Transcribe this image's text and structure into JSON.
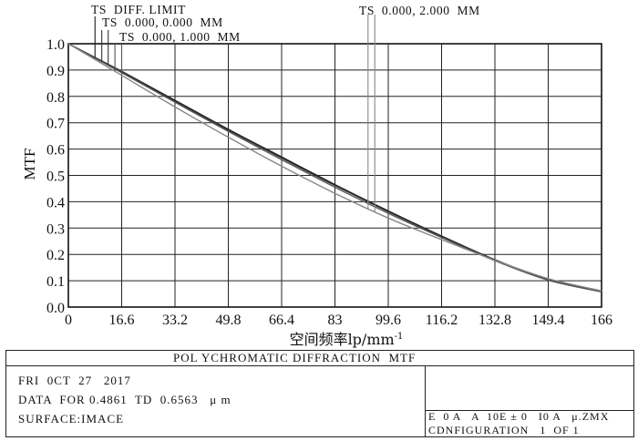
{
  "chart_data": {
    "type": "line",
    "ylabel": "MTF",
    "xlabel": "空间频率lp/mm",
    "xlabel_superscript": "-1",
    "xlim": [
      0,
      166
    ],
    "ylim": [
      0,
      1
    ],
    "x_ticks": [
      "0",
      "16.6",
      "33.2",
      "49.8",
      "66.4",
      "83",
      "99.6",
      "116.2",
      "132.8",
      "149.4",
      "166"
    ],
    "y_ticks": [
      "0.0",
      "0.1",
      "0.2",
      "0.3",
      "0.4",
      "0.5",
      "0.6",
      "0.7",
      "0.8",
      "0.9",
      "1.0"
    ],
    "grid": true,
    "legend": [
      {
        "label": "TS  DIFF. LIMIT",
        "marker_x": [
          8.3
        ]
      },
      {
        "label": "TS  0.000, 0.000  MM",
        "marker_x": [
          10.4,
          12.4
        ]
      },
      {
        "label": "TS  0.000, 1.000  MM",
        "marker_x": [
          14.5,
          16.6
        ]
      },
      {
        "label": "TS  0.000, 2.000  MM",
        "marker_x": [
          93.3,
          95.4
        ]
      }
    ],
    "series": [
      {
        "name": "TS  DIFF. LIMIT",
        "color": "#1a1a1a",
        "x": [
          0,
          16.6,
          33.2,
          49.8,
          66.4,
          83,
          99.6,
          116.2,
          132.8,
          149.4,
          166
        ],
        "y": [
          1.0,
          0.895,
          0.785,
          0.675,
          0.57,
          0.465,
          0.365,
          0.27,
          0.18,
          0.105,
          0.06
        ]
      },
      {
        "name": "TS  0.000, 0.000  MM",
        "color": "#333333",
        "x": [
          0,
          16.6,
          33.2,
          49.8,
          66.4,
          83,
          99.6,
          116.2,
          132.8,
          149.4,
          166
        ],
        "y": [
          1.0,
          0.893,
          0.782,
          0.672,
          0.566,
          0.462,
          0.362,
          0.268,
          0.178,
          0.103,
          0.058
        ]
      },
      {
        "name": "TS  0.000, 1.000  MM",
        "color": "#555555",
        "x": [
          0,
          16.6,
          33.2,
          49.8,
          66.4,
          83,
          99.6,
          116.2,
          132.8,
          149.4,
          166
        ],
        "y": [
          1.0,
          0.89,
          0.778,
          0.667,
          0.56,
          0.455,
          0.356,
          0.264,
          0.176,
          0.102,
          0.058
        ]
      },
      {
        "name": "TS  0.000, 2.000  MM",
        "color": "#888888",
        "x": [
          0,
          16.6,
          33.2,
          49.8,
          66.4,
          83,
          99.6,
          116.2,
          132.8,
          149.4,
          166
        ],
        "y": [
          1.0,
          0.88,
          0.76,
          0.645,
          0.535,
          0.432,
          0.338,
          0.256,
          0.178,
          0.108,
          0.062
        ]
      }
    ]
  },
  "panel": {
    "title": "POL YCHROMATIC DIFFRACTION  MTF",
    "date": "FRI  0CT  27   2017",
    "data_for": "DATA  FOR 0.4861  TD  0.6563   μ m",
    "surface": "SURFACE:IMACE",
    "file": "E  0 A   A  10E ± 0   I0 A   μ.ZMX",
    "configuration": "CDNFIGURATION   1  OF 1"
  }
}
